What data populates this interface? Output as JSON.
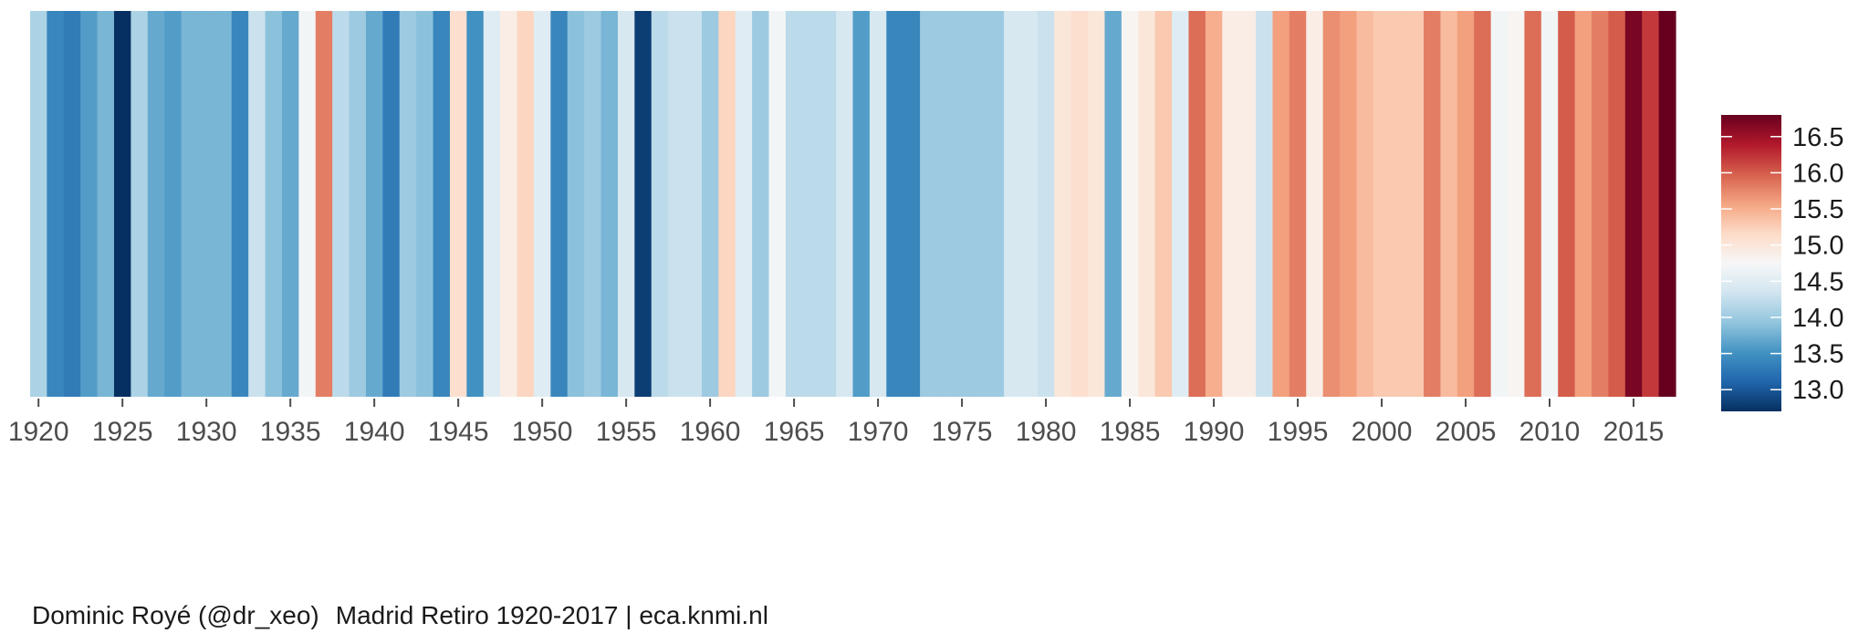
{
  "chart_data": {
    "type": "heatmap",
    "title": "",
    "xlabel": "",
    "ylabel": "",
    "years": [
      1920,
      1921,
      1922,
      1923,
      1924,
      1925,
      1926,
      1927,
      1928,
      1929,
      1930,
      1931,
      1932,
      1933,
      1934,
      1935,
      1936,
      1937,
      1938,
      1939,
      1940,
      1941,
      1942,
      1943,
      1944,
      1945,
      1946,
      1947,
      1948,
      1949,
      1950,
      1951,
      1952,
      1953,
      1954,
      1955,
      1956,
      1957,
      1958,
      1959,
      1960,
      1961,
      1962,
      1963,
      1964,
      1965,
      1966,
      1967,
      1968,
      1969,
      1970,
      1971,
      1972,
      1973,
      1974,
      1975,
      1976,
      1977,
      1978,
      1979,
      1980,
      1981,
      1982,
      1983,
      1984,
      1985,
      1986,
      1987,
      1988,
      1989,
      1990,
      1991,
      1992,
      1993,
      1994,
      1995,
      1996,
      1997,
      1998,
      1999,
      2000,
      2001,
      2002,
      2003,
      2004,
      2005,
      2006,
      2007,
      2008,
      2009,
      2010,
      2011,
      2012,
      2013,
      2014,
      2015,
      2016,
      2017
    ],
    "values": [
      14.1,
      13.4,
      13.3,
      13.6,
      13.8,
      12.7,
      14.1,
      13.7,
      13.6,
      13.8,
      13.8,
      13.8,
      13.4,
      14.3,
      13.9,
      13.7,
      14.7,
      15.8,
      14.2,
      14.0,
      13.7,
      13.3,
      14.0,
      13.9,
      13.4,
      15.1,
      13.5,
      14.5,
      14.9,
      15.2,
      14.5,
      13.4,
      13.9,
      14.0,
      13.8,
      14.4,
      12.8,
      14.2,
      14.3,
      14.3,
      14.0,
      15.2,
      14.5,
      14.0,
      14.7,
      14.2,
      14.2,
      14.2,
      14.4,
      13.6,
      14.4,
      13.4,
      13.4,
      14.0,
      14.0,
      14.0,
      14.0,
      14.0,
      14.4,
      14.4,
      14.3,
      15.0,
      15.1,
      15.0,
      13.7,
      14.8,
      15.0,
      15.3,
      14.5,
      15.9,
      15.5,
      14.9,
      14.9,
      14.3,
      15.6,
      15.8,
      14.9,
      15.7,
      15.6,
      15.4,
      15.3,
      15.3,
      15.3,
      15.8,
      15.4,
      15.6,
      15.9,
      14.7,
      14.8,
      15.9,
      14.7,
      16.0,
      15.6,
      15.8,
      16.0,
      16.7,
      16.2,
      16.8
    ],
    "x_ticks": [
      "1920",
      "1925",
      "1930",
      "1935",
      "1940",
      "1945",
      "1950",
      "1955",
      "1960",
      "1965",
      "1970",
      "1975",
      "1980",
      "1985",
      "1990",
      "1995",
      "2000",
      "2005",
      "2010",
      "2015"
    ],
    "x_range": [
      1920,
      2017
    ],
    "grid": false,
    "legend": {
      "placement": "right",
      "limits": [
        12.7,
        16.8
      ],
      "ticks": [
        "13.0",
        "13.5",
        "14.0",
        "14.5",
        "15.0",
        "15.5",
        "16.0",
        "16.5"
      ],
      "colors": [
        "#053061",
        "#2166ac",
        "#4393c3",
        "#92c5de",
        "#d1e5f0",
        "#f7f7f7",
        "#fddbc7",
        "#f4a582",
        "#d6604d",
        "#b2182b",
        "#67001f"
      ]
    }
  },
  "caption": {
    "author": "Dominic Royé (@dr_xeo)",
    "source": "Madrid Retiro 1920-2017 | eca.knmi.nl"
  }
}
